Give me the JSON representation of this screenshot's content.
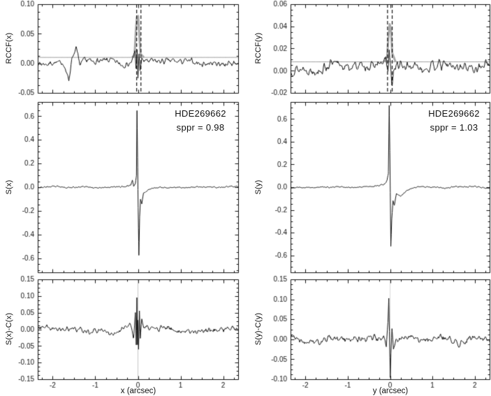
{
  "figure": {
    "background": "#ffffff",
    "colors": {
      "ink": "#111111",
      "gray_line": "#999999",
      "gray_peak": "#a8a8a8"
    }
  },
  "chart_data": [
    {
      "id": "rccf_x",
      "type": "line",
      "position": {
        "row": 0,
        "col": 0
      },
      "ylabel": "RCCF(x)",
      "xlabel": "",
      "xlim": [
        -2.35,
        2.35
      ],
      "ylim": [
        -0.05,
        0.1
      ],
      "yticks": [
        "-0.05",
        "0.00",
        "0.05",
        "0.10"
      ],
      "xticks": [
        "-2",
        "-1",
        "0",
        "1",
        "2"
      ],
      "show_xticklabels": false,
      "noise": {
        "seed": 7,
        "n": 320,
        "amp": 0.0075
      },
      "offset": 0.001,
      "features": [
        {
          "points": [
            [
              -0.2,
              0
            ],
            [
              -0.12,
              0.004
            ],
            [
              -0.07,
              0.018
            ],
            [
              -0.045,
              -0.01
            ],
            [
              -0.02,
              0.02
            ],
            [
              0.0,
              -0.026
            ],
            [
              0.025,
              0.014
            ],
            [
              0.05,
              -0.02
            ],
            [
              0.09,
              0.006
            ],
            [
              0.16,
              0
            ]
          ]
        },
        {
          "points": [
            [
              -1.75,
              0
            ],
            [
              -1.62,
              -0.028
            ],
            [
              -1.55,
              0.008
            ],
            [
              -1.45,
              0.022
            ],
            [
              -1.35,
              -0.01
            ],
            [
              -1.25,
              0
            ]
          ]
        }
      ],
      "extras": [
        {
          "name": "gray-baseline",
          "color": "#999999",
          "width": 1,
          "base": 0.01
        },
        {
          "name": "gray-ccf-peak",
          "color": "#a8a8a8",
          "width": 3,
          "base": 0.01,
          "xrange": [
            -0.14,
            0.14
          ],
          "features": [
            {
              "points": [
                [
                  -0.14,
                  0
                ],
                [
                  -0.08,
                  0.003
                ],
                [
                  -0.05,
                  0.045
                ],
                [
                  -0.025,
                  0.068
                ],
                [
                  0.005,
                  0.07
                ],
                [
                  0.03,
                  0.04
                ],
                [
                  0.06,
                  0.006
                ],
                [
                  0.14,
                  0
                ]
              ]
            }
          ]
        }
      ],
      "vlines_dashed": [
        -0.03,
        0.07
      ]
    },
    {
      "id": "rccf_y",
      "type": "line",
      "position": {
        "row": 0,
        "col": 1
      },
      "ylabel": "RCCF(y)",
      "xlabel": "",
      "xlim": [
        -2.35,
        2.35
      ],
      "ylim": [
        -0.02,
        0.06
      ],
      "yticks": [
        "-0.02",
        "0.00",
        "0.02",
        "0.04",
        "0.06"
      ],
      "xticks": [
        "-2",
        "-1",
        "0",
        "1",
        "2"
      ],
      "show_xticklabels": false,
      "noise": {
        "seed": 13,
        "n": 320,
        "amp": 0.0062
      },
      "offset": 0.004,
      "features": [
        {
          "points": [
            [
              -0.18,
              0
            ],
            [
              -0.1,
              0.006
            ],
            [
              -0.05,
              -0.008
            ],
            [
              -0.02,
              0.012
            ],
            [
              0.01,
              -0.002
            ],
            [
              0.04,
              -0.018
            ],
            [
              0.08,
              -0.006
            ],
            [
              0.15,
              0
            ]
          ]
        }
      ],
      "extras": [
        {
          "name": "gray-baseline",
          "color": "#999999",
          "width": 1,
          "base": 0.008
        },
        {
          "name": "gray-ccf-peak",
          "color": "#a8a8a8",
          "width": 3,
          "base": 0.008,
          "xrange": [
            -0.13,
            0.13
          ],
          "features": [
            {
              "points": [
                [
                  -0.13,
                  0
                ],
                [
                  -0.07,
                  0.004
                ],
                [
                  -0.04,
                  0.022
                ],
                [
                  -0.01,
                  0.034
                ],
                [
                  0.02,
                  0.03
                ],
                [
                  0.05,
                  0.008
                ],
                [
                  0.13,
                  0
                ]
              ]
            }
          ]
        }
      ],
      "vlines_dashed": [
        -0.06,
        0.05
      ]
    },
    {
      "id": "s_x",
      "type": "line",
      "position": {
        "row": 1,
        "col": 0
      },
      "ylabel": "S(x)",
      "xlabel": "",
      "xlim": [
        -2.35,
        2.35
      ],
      "ylim": [
        -0.72,
        0.72
      ],
      "yticks": [
        "-0.6",
        "-0.4",
        "-0.2",
        "0.0",
        "0.2",
        "0.4",
        "0.6"
      ],
      "xticks": [
        "-2",
        "-1",
        "0",
        "1",
        "2"
      ],
      "show_xticklabels": false,
      "annotation": {
        "line1": "HDE269662",
        "line2": "sppr = 0.98"
      },
      "noise": {
        "seed": 23,
        "n": 420,
        "amp": 0.009
      },
      "offset": 0,
      "features": [
        {
          "points": [
            [
              -0.5,
              0
            ],
            [
              -0.3,
              0.008
            ],
            [
              -0.17,
              0.02
            ],
            [
              -0.13,
              0.06
            ],
            [
              -0.1,
              0.01
            ],
            [
              -0.06,
              0.03
            ],
            [
              -0.035,
              0.1
            ],
            [
              -0.022,
              0.65
            ],
            [
              -0.008,
              0.25
            ],
            [
              0.0,
              -0.02
            ],
            [
              0.012,
              -0.35
            ],
            [
              0.022,
              -0.58
            ],
            [
              0.04,
              -0.25
            ],
            [
              0.06,
              -0.1
            ],
            [
              0.09,
              -0.14
            ],
            [
              0.13,
              -0.05
            ],
            [
              0.2,
              -0.03
            ],
            [
              0.35,
              -0.01
            ],
            [
              0.55,
              0
            ]
          ]
        }
      ],
      "extras": []
    },
    {
      "id": "s_y",
      "type": "line",
      "position": {
        "row": 1,
        "col": 1
      },
      "ylabel": "S(y)",
      "xlabel": "",
      "xlim": [
        -2.35,
        2.35
      ],
      "ylim": [
        -0.75,
        0.75
      ],
      "yticks": [
        "-0.6",
        "-0.4",
        "-0.2",
        "0.0",
        "0.2",
        "0.4",
        "0.6"
      ],
      "xticks": [
        "-2",
        "-1",
        "0",
        "1",
        "2"
      ],
      "show_xticklabels": false,
      "annotation": {
        "line1": "HDE269662",
        "line2": "sppr = 1.03"
      },
      "noise": {
        "seed": 29,
        "n": 420,
        "amp": 0.009
      },
      "offset": 0,
      "features": [
        {
          "points": [
            [
              -0.45,
              0
            ],
            [
              -0.25,
              0.01
            ],
            [
              -0.12,
              0.03
            ],
            [
              -0.07,
              0.06
            ],
            [
              -0.04,
              0.12
            ],
            [
              -0.02,
              0.72
            ],
            [
              -0.005,
              0.3
            ],
            [
              0.005,
              -0.05
            ],
            [
              0.018,
              -0.52
            ],
            [
              0.04,
              -0.28
            ],
            [
              0.07,
              -0.12
            ],
            [
              0.1,
              -0.16
            ],
            [
              0.15,
              -0.06
            ],
            [
              0.25,
              -0.08
            ],
            [
              0.4,
              -0.02
            ],
            [
              0.6,
              0
            ]
          ]
        }
      ],
      "extras": []
    },
    {
      "id": "s_x_minus_c_x",
      "type": "line",
      "position": {
        "row": 2,
        "col": 0
      },
      "ylabel": "S(x)-C(x)",
      "xlabel": "x (arcsec)",
      "xlim": [
        -2.35,
        2.35
      ],
      "ylim": [
        -0.15,
        0.15
      ],
      "yticks": [
        "-0.15",
        "-0.10",
        "-0.05",
        "0.00",
        "0.05",
        "0.10",
        "0.15"
      ],
      "xticks": [
        "-2",
        "-1",
        "0",
        "1",
        "2"
      ],
      "show_xticklabels": true,
      "noise": {
        "seed": 37,
        "n": 330,
        "amp": 0.013
      },
      "offset": 0,
      "features": [
        {
          "points": [
            [
              -0.3,
              0
            ],
            [
              -0.18,
              0.012
            ],
            [
              -0.1,
              -0.025
            ],
            [
              -0.06,
              0.04
            ],
            [
              -0.04,
              -0.055
            ],
            [
              -0.025,
              0.095
            ],
            [
              -0.012,
              -0.04
            ],
            [
              0.0,
              0.03
            ],
            [
              0.015,
              -0.065
            ],
            [
              0.035,
              0.05
            ],
            [
              0.055,
              -0.035
            ],
            [
              0.09,
              0.02
            ],
            [
              0.16,
              0
            ]
          ]
        }
      ],
      "extras": [],
      "vlines_solid": [
        {
          "x": 0,
          "color": "#cccccc",
          "width": 1.2
        }
      ]
    },
    {
      "id": "s_y_minus_c_y",
      "type": "line",
      "position": {
        "row": 2,
        "col": 1
      },
      "ylabel": "S(y)-C(y)",
      "xlabel": "y (arcsec)",
      "xlim": [
        -2.35,
        2.35
      ],
      "ylim": [
        -0.1,
        0.15
      ],
      "yticks": [
        "-0.10",
        "-0.05",
        "0.00",
        "0.05",
        "0.10",
        "0.15"
      ],
      "xticks": [
        "-2",
        "-1",
        "0",
        "1",
        "2"
      ],
      "show_xticklabels": true,
      "noise": {
        "seed": 41,
        "n": 330,
        "amp": 0.013
      },
      "offset": 0,
      "features": [
        {
          "points": [
            [
              -0.25,
              0
            ],
            [
              -0.15,
              0.015
            ],
            [
              -0.09,
              -0.02
            ],
            [
              -0.05,
              0.05
            ],
            [
              -0.03,
              0.11
            ],
            [
              -0.015,
              0.03
            ],
            [
              -0.005,
              -0.04
            ],
            [
              0.005,
              -0.088
            ],
            [
              0.02,
              -0.03
            ],
            [
              0.045,
              0.035
            ],
            [
              0.08,
              -0.015
            ],
            [
              0.14,
              0
            ]
          ]
        }
      ],
      "extras": [],
      "vlines_solid": [
        {
          "x": 0,
          "color": "#d9d9d9",
          "width": 1
        }
      ]
    }
  ]
}
